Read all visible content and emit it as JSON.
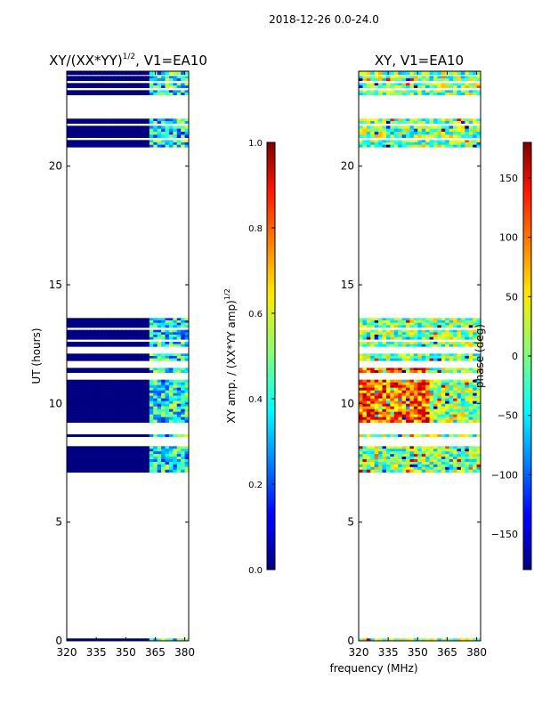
{
  "figure": {
    "suptitle": "2018-12-26 0.0-24.0",
    "xlabel_shared": "frequency (MHz)"
  },
  "chart_data": [
    {
      "type": "heatmap",
      "title_main": "XY/(XX*YY)",
      "title_sup": "1/2",
      "title_tail": ", V1=EA10",
      "ylabel": "UT (hours)",
      "xlim": [
        320,
        382
      ],
      "ylim": [
        0,
        24
      ],
      "xticks": [
        "320",
        "335",
        "350",
        "365",
        "380"
      ],
      "xtick_values": [
        320,
        335,
        350,
        365,
        380
      ],
      "yticks": [
        "0",
        "5",
        "10",
        "15",
        "20"
      ],
      "ytick_values": [
        0,
        5,
        10,
        15,
        20
      ],
      "data_rows_hours": [
        [
          0.0,
          0.1
        ],
        [
          7.1,
          8.2
        ],
        [
          8.6,
          8.7
        ],
        [
          9.2,
          11.0
        ],
        [
          11.3,
          11.5
        ],
        [
          11.8,
          12.1
        ],
        [
          12.4,
          12.6
        ],
        [
          12.7,
          13.1
        ],
        [
          13.2,
          13.6
        ],
        [
          20.8,
          21.1
        ],
        [
          21.2,
          21.7
        ],
        [
          21.8,
          22.0
        ],
        [
          23.0,
          23.2
        ],
        [
          23.3,
          23.5
        ],
        [
          23.6,
          23.8
        ],
        [
          23.85,
          24.0
        ]
      ],
      "colorbar": {
        "label_main": "XY amp. / (XX*YY amp)",
        "label_sup": "1/2",
        "range": [
          0.0,
          1.0
        ],
        "ticks": [
          "0.0",
          "0.2",
          "0.4",
          "0.6",
          "0.8",
          "1.0"
        ],
        "tick_values": [
          0.0,
          0.2,
          0.4,
          0.6,
          0.8,
          1.0
        ],
        "colormap": "jet"
      }
    },
    {
      "type": "heatmap",
      "title": "XY, V1=EA10",
      "xlim": [
        320,
        382
      ],
      "ylim": [
        0,
        24
      ],
      "xticks": [
        "320",
        "335",
        "350",
        "365",
        "380"
      ],
      "xtick_values": [
        320,
        335,
        350,
        365,
        380
      ],
      "yticks": [
        "0",
        "5",
        "10",
        "15",
        "20"
      ],
      "ytick_values": [
        0,
        5,
        10,
        15,
        20
      ],
      "data_rows_hours": [
        [
          0.0,
          0.1
        ],
        [
          7.1,
          8.2
        ],
        [
          8.6,
          8.7
        ],
        [
          9.2,
          11.0
        ],
        [
          11.3,
          11.5
        ],
        [
          11.8,
          12.1
        ],
        [
          12.4,
          12.6
        ],
        [
          12.7,
          13.1
        ],
        [
          13.2,
          13.6
        ],
        [
          20.8,
          21.1
        ],
        [
          21.2,
          21.7
        ],
        [
          21.8,
          22.0
        ],
        [
          23.0,
          23.2
        ],
        [
          23.3,
          23.5
        ],
        [
          23.6,
          23.8
        ],
        [
          23.85,
          24.0
        ]
      ],
      "colorbar": {
        "label": "phase (deg)",
        "range": [
          -180,
          180
        ],
        "ticks": [
          "−150",
          "−100",
          "−50",
          "0",
          "50",
          "100",
          "150"
        ],
        "tick_values": [
          -150,
          -100,
          -50,
          0,
          50,
          100,
          150
        ],
        "colormap": "jet"
      }
    }
  ]
}
